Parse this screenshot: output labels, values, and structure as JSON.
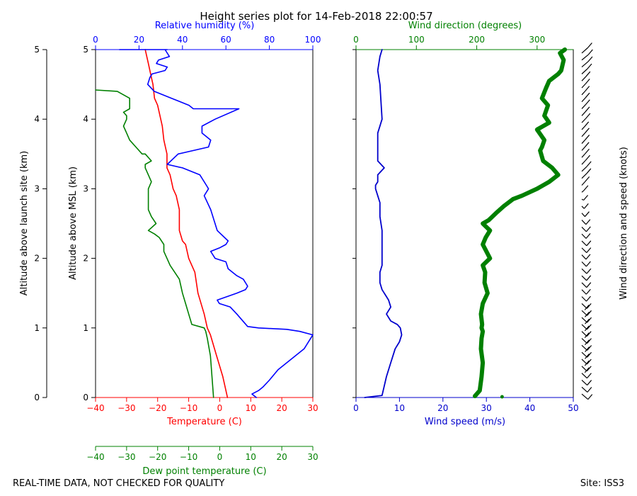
{
  "title": "Height series plot for 14-Feb-2018 22:00:57",
  "footer": {
    "left": "REAL-TIME DATA, NOT CHECKED FOR QUALITY",
    "right": "Site: ISS3"
  },
  "colors": {
    "temperature": "#ff0000",
    "dewpoint": "#008000",
    "humidity": "#0000ff",
    "wind_speed": "#0000cc",
    "wind_dir": "#008000",
    "barbs": "#000000"
  },
  "chart_data": [
    {
      "type": "line",
      "name": "thermo-panel",
      "ylabel_outer": "Altitude above launch site (km)",
      "ylabel_inner": "Altitude above MSL (km)",
      "ylim": [
        0,
        5
      ],
      "yticks": [
        "0",
        "1",
        "2",
        "3",
        "4",
        "5"
      ],
      "axes": {
        "temperature": {
          "label": "Temperature (C)",
          "lim": [
            -40,
            30
          ],
          "ticks": [
            "−40",
            "−30",
            "−20",
            "−10",
            "0",
            "10",
            "20",
            "30"
          ]
        },
        "dewpoint": {
          "label": "Dew point temperature (C)",
          "lim": [
            -40,
            30
          ],
          "ticks": [
            "−40",
            "−30",
            "−20",
            "−10",
            "0",
            "10",
            "20",
            "30"
          ]
        },
        "humidity": {
          "label": "Relative humidity (%)",
          "lim": [
            0,
            100
          ],
          "ticks": [
            "0",
            "20",
            "40",
            "60",
            "80",
            "100"
          ]
        }
      },
      "series": [
        {
          "key": "temperature",
          "axis": "temperature",
          "x": [
            2.5,
            1,
            -1,
            -3,
            -4,
            -5,
            -7,
            -8,
            -10,
            -11,
            -12,
            -13,
            -13,
            -14,
            -15,
            -16,
            -17,
            -17,
            -18,
            -18.5,
            -19,
            -20,
            -21,
            -21.5,
            -22,
            -23,
            -23.5,
            -24
          ],
          "y": [
            0,
            0.3,
            0.6,
            0.9,
            1.0,
            1.2,
            1.5,
            1.8,
            2.0,
            2.2,
            2.25,
            2.4,
            2.7,
            2.9,
            3.0,
            3.2,
            3.3,
            3.5,
            3.7,
            3.9,
            4.0,
            4.2,
            4.3,
            4.5,
            4.6,
            4.8,
            4.9,
            5.0
          ]
        },
        {
          "key": "dewpoint",
          "axis": "dewpoint",
          "x": [
            -2,
            -2.5,
            -3,
            -4,
            -4.5,
            -5,
            -9,
            -10,
            -11,
            -12,
            -13,
            -16,
            -17,
            -18,
            -18,
            -19.5,
            -21,
            -23,
            -20.5,
            -22,
            -23,
            -23,
            -23,
            -22,
            -23,
            -24,
            -24,
            -22,
            -24,
            -25,
            -27,
            -29,
            -30,
            -31,
            -30,
            -30,
            -31,
            -29,
            -29,
            -33,
            -40
          ],
          "y": [
            0,
            0.3,
            0.6,
            0.85,
            0.95,
            1.0,
            1.05,
            1.2,
            1.35,
            1.5,
            1.7,
            1.9,
            2.0,
            2.1,
            2.2,
            2.3,
            2.35,
            2.4,
            2.5,
            2.6,
            2.7,
            2.8,
            3.0,
            3.1,
            3.2,
            3.3,
            3.35,
            3.4,
            3.5,
            3.5,
            3.6,
            3.7,
            3.8,
            3.9,
            4.0,
            4.05,
            4.1,
            4.15,
            4.3,
            4.4,
            4.42
          ]
        },
        {
          "key": "humidity",
          "axis": "humidity",
          "x": [
            74,
            72,
            75,
            77,
            80,
            84,
            90,
            96,
            100,
            94,
            88,
            75,
            70,
            65,
            62,
            57,
            56,
            65,
            69,
            70,
            68,
            65,
            61,
            60,
            55,
            53,
            57,
            60,
            61,
            56,
            53,
            50,
            52,
            51,
            48,
            40,
            33,
            38,
            52,
            53,
            49,
            49,
            55,
            66,
            45,
            43,
            35,
            27,
            24,
            25,
            26,
            32,
            33,
            28,
            29,
            34,
            32,
            33,
            26,
            28,
            21,
            20,
            19,
            14,
            15,
            18,
            14,
            11
          ],
          "y": [
            0,
            0.05,
            0.1,
            0.15,
            0.25,
            0.4,
            0.55,
            0.7,
            0.9,
            0.95,
            0.98,
            1.0,
            1.02,
            1.2,
            1.3,
            1.35,
            1.4,
            1.5,
            1.55,
            1.6,
            1.7,
            1.75,
            1.85,
            1.95,
            2.0,
            2.1,
            2.15,
            2.2,
            2.25,
            2.4,
            2.7,
            2.9,
            3.0,
            3.05,
            3.2,
            3.3,
            3.35,
            3.5,
            3.6,
            3.7,
            3.8,
            3.9,
            4.0,
            4.15,
            4.15,
            4.2,
            4.3,
            4.4,
            4.5,
            4.6,
            4.65,
            4.7,
            4.75,
            4.8,
            4.85,
            4.9,
            5.0,
            5.0,
            5.0,
            5.0,
            5.0,
            5.0,
            5.0,
            5.0,
            5.0,
            5.0,
            5.0,
            5.0
          ]
        }
      ]
    },
    {
      "type": "line",
      "name": "wind-panel",
      "ylim": [
        0,
        5
      ],
      "axes": {
        "wind_speed": {
          "label": "Wind speed (m/s)",
          "lim": [
            0,
            50
          ],
          "ticks": [
            "0",
            "10",
            "20",
            "30",
            "40",
            "50"
          ]
        },
        "wind_dir": {
          "label": "Wind direction (degrees)",
          "lim": [
            0,
            360
          ],
          "ticks": [
            "0",
            "100",
            "200",
            "300"
          ]
        }
      },
      "series": [
        {
          "key": "wind_speed",
          "axis": "wind_speed",
          "x": [
            2,
            6,
            7,
            8,
            9,
            10,
            10.5,
            10.2,
            9.5,
            8,
            7,
            8,
            7.5,
            7,
            6,
            5.5,
            5.5,
            6,
            6,
            6,
            6,
            5.5,
            5.5,
            5,
            4.5,
            4.5,
            5,
            5,
            6.5,
            5,
            5,
            5,
            6,
            5.5,
            5,
            5.5,
            6
          ],
          "y": [
            0,
            0.03,
            0.3,
            0.5,
            0.7,
            0.8,
            0.9,
            1.0,
            1.05,
            1.1,
            1.2,
            1.3,
            1.4,
            1.45,
            1.55,
            1.65,
            1.8,
            1.9,
            2.0,
            2.2,
            2.4,
            2.6,
            2.8,
            2.9,
            3.0,
            3.05,
            3.1,
            3.2,
            3.3,
            3.4,
            3.5,
            3.8,
            4.0,
            4.5,
            4.7,
            4.9,
            5.0
          ]
        },
        {
          "key": "wind_dir",
          "axis": "wind_dir",
          "x": [
            197,
            205,
            208,
            210,
            207,
            208,
            210,
            208,
            209,
            207,
            210,
            218,
            213,
            214,
            210,
            222,
            210,
            215,
            222,
            210,
            220,
            232,
            245,
            260,
            275,
            300,
            320,
            335,
            325,
            310,
            305,
            308,
            312,
            300,
            320,
            312,
            318,
            308,
            315,
            320,
            335,
            340,
            344,
            338,
            346
          ],
          "y": [
            0.02,
            0.1,
            0.3,
            0.5,
            0.7,
            0.85,
            0.95,
            1.0,
            1.05,
            1.2,
            1.35,
            1.5,
            1.65,
            1.8,
            1.9,
            2.0,
            2.2,
            2.3,
            2.4,
            2.5,
            2.55,
            2.65,
            2.75,
            2.85,
            2.9,
            3.0,
            3.1,
            3.2,
            3.3,
            3.4,
            3.55,
            3.6,
            3.7,
            3.85,
            3.95,
            4.05,
            4.2,
            4.3,
            4.45,
            4.55,
            4.65,
            4.7,
            4.85,
            4.95,
            5.0
          ]
        }
      ],
      "extra_point": {
        "wind_dir": 242,
        "altitude": 0.01
      }
    },
    {
      "type": "barbs",
      "name": "wind-barbs",
      "label": "Wind direction and speed (knots)",
      "ylim": [
        0,
        5
      ]
    }
  ]
}
